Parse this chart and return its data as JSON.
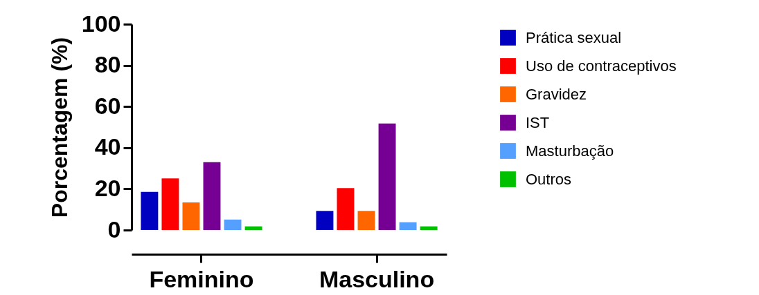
{
  "chart_data": {
    "type": "bar",
    "ylabel": "Porcentagem (%)",
    "categories": [
      "Feminino",
      "Masculino"
    ],
    "ylim": [
      0,
      100
    ],
    "yticks": [
      0,
      20,
      40,
      60,
      80,
      100
    ],
    "grid": false,
    "legend": "right",
    "series": [
      {
        "name": "Prática sexual",
        "color": "#0000c0",
        "values": [
          18.5,
          9.3
        ]
      },
      {
        "name": "Uso de contraceptivos",
        "color": "#ff0000",
        "values": [
          25.1,
          20.4
        ]
      },
      {
        "name": "Gravidez",
        "color": "#ff6600",
        "values": [
          13.4,
          9.3
        ]
      },
      {
        "name": "IST",
        "color": "#770094",
        "values": [
          33,
          51.8
        ]
      },
      {
        "name": "Masturbação",
        "color": "#55a0ff",
        "values": [
          5.1,
          3.8
        ]
      },
      {
        "name": "Outros",
        "color": "#00c000",
        "values": [
          1.8,
          1.8
        ]
      }
    ]
  }
}
